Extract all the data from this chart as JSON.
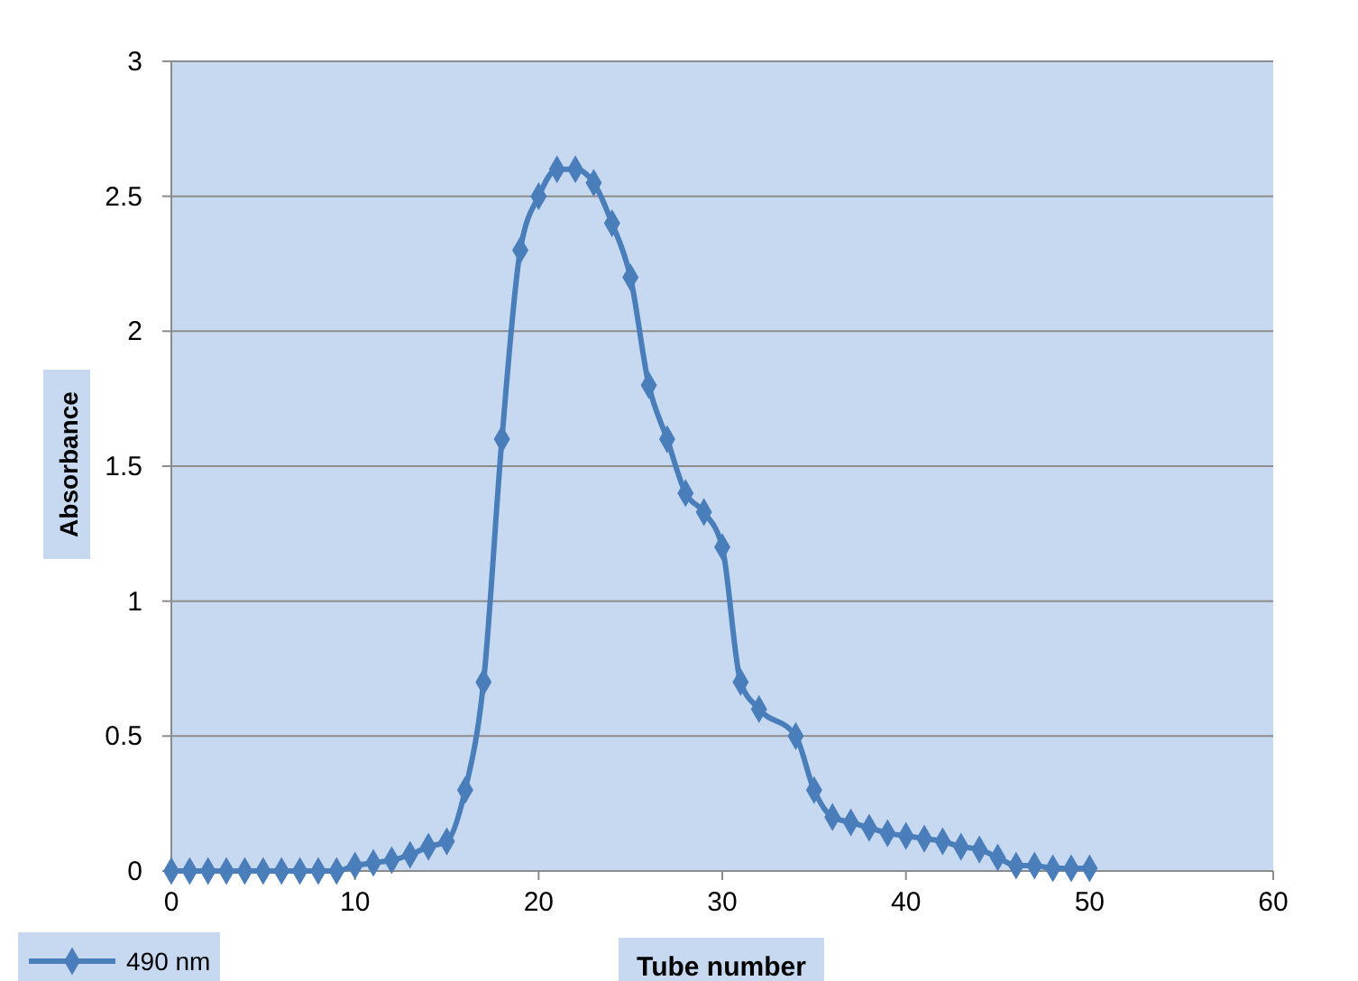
{
  "chart_data": {
    "type": "line",
    "xlabel": "Tube number",
    "ylabel": "Absorbance",
    "xlim": [
      0,
      60
    ],
    "xticks": [
      0,
      10,
      20,
      30,
      40,
      50,
      60
    ],
    "ylim": [
      0,
      3
    ],
    "yticks": [
      0,
      0.5,
      1,
      1.5,
      2,
      2.5,
      3
    ],
    "grid": "y",
    "legend": "bottom left",
    "marker": "diamond",
    "line_style": "solid",
    "series": [
      {
        "name": "490 nm",
        "color": "#4a7ebb",
        "x": [
          0,
          1,
          2,
          3,
          4,
          5,
          6,
          7,
          8,
          9,
          10,
          11,
          12,
          13,
          14,
          15,
          16,
          17,
          18,
          19,
          20,
          21,
          22,
          23,
          24,
          25,
          26,
          27,
          28,
          29,
          30,
          31,
          32,
          34,
          35,
          36,
          37,
          38,
          39,
          40,
          41,
          42,
          43,
          44,
          45,
          46,
          47,
          48,
          49,
          50
        ],
        "values": [
          0,
          0,
          0,
          0,
          0,
          0,
          0,
          0,
          0,
          0,
          0.02,
          0.03,
          0.04,
          0.06,
          0.09,
          0.11,
          0.3,
          0.7,
          1.6,
          2.3,
          2.5,
          2.6,
          2.6,
          2.55,
          2.4,
          2.2,
          1.8,
          1.6,
          1.4,
          1.33,
          1.2,
          0.7,
          0.6,
          0.5,
          0.3,
          0.2,
          0.18,
          0.16,
          0.14,
          0.13,
          0.12,
          0.11,
          0.09,
          0.08,
          0.05,
          0.02,
          0.02,
          0.01,
          0.01,
          0.01
        ]
      }
    ]
  }
}
